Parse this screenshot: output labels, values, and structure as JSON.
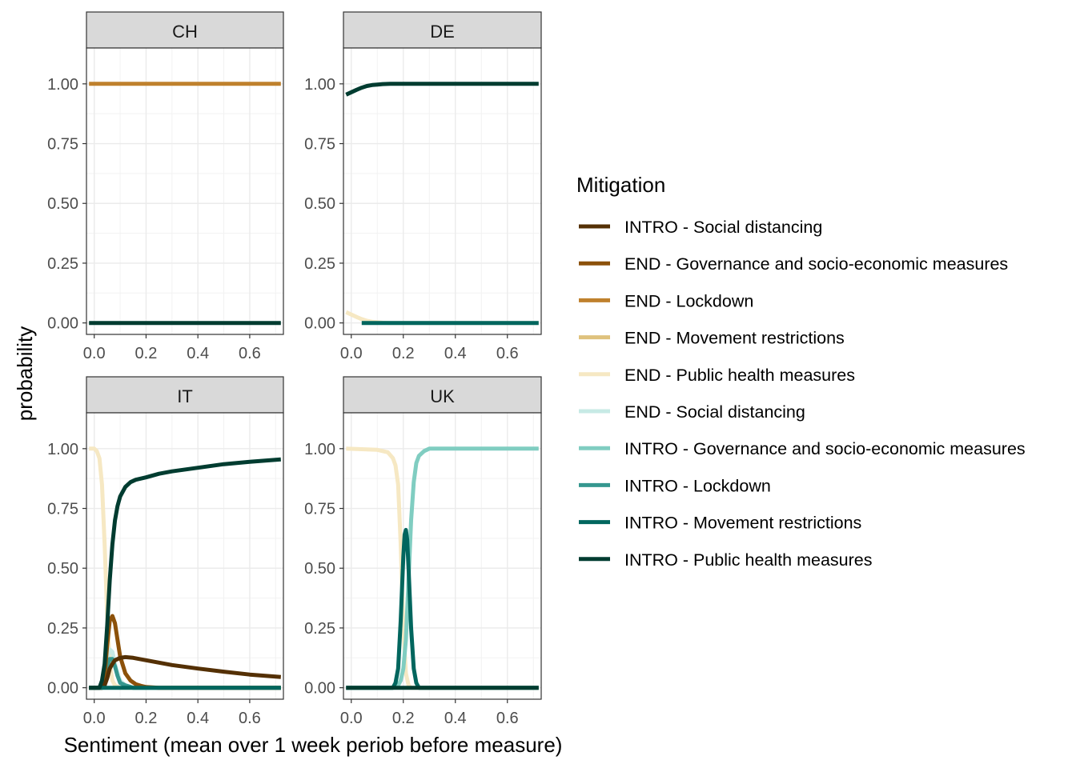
{
  "chart_data": {
    "type": "line",
    "layout": "facet 2x2",
    "xlabel": "Sentiment (mean over 1 week periob before measure)",
    "ylabel": "probability",
    "xlim": [
      -0.02,
      0.72
    ],
    "ylim": [
      -0.05,
      1.15
    ],
    "x_ticks": [
      0.0,
      0.2,
      0.4,
      0.6
    ],
    "x_tick_labels": [
      "0.0",
      "0.2",
      "0.4",
      "0.6"
    ],
    "y_ticks": [
      0,
      0.25,
      0.5,
      0.75,
      1.0
    ],
    "y_tick_labels": [
      "0.00",
      "0.25",
      "0.50",
      "0.75",
      "1.00"
    ],
    "grid": true,
    "legend": {
      "title": "Mitigation",
      "position": "right",
      "entries": [
        {
          "label": "INTRO - Social distancing",
          "color": "#543005"
        },
        {
          "label": "END - Governance and socio-economic measures",
          "color": "#8c510a"
        },
        {
          "label": "END - Lockdown",
          "color": "#bf812d"
        },
        {
          "label": "END - Movement restrictions",
          "color": "#dfc27d"
        },
        {
          "label": "END - Public health measures",
          "color": "#f6e8c3"
        },
        {
          "label": "END - Social distancing",
          "color": "#c7eae5"
        },
        {
          "label": "INTRO - Governance and socio-economic measures",
          "color": "#80cdc1"
        },
        {
          "label": "INTRO - Lockdown",
          "color": "#35978f"
        },
        {
          "label": "INTRO - Movement restrictions",
          "color": "#01665e"
        },
        {
          "label": "INTRO - Public health measures",
          "color": "#003c30"
        }
      ]
    },
    "panels": [
      {
        "title": "CH",
        "series": [
          {
            "name": "INTRO - Public health measures",
            "color": "#003c30",
            "x": [
              -0.02,
              0.72
            ],
            "y": [
              0.0,
              0.0
            ]
          },
          {
            "name": "END - Lockdown",
            "color": "#bf812d",
            "x": [
              -0.02,
              0.72
            ],
            "y": [
              1.0,
              1.0
            ]
          }
        ]
      },
      {
        "title": "DE",
        "series": [
          {
            "name": "END - Public health measures",
            "color": "#f6e8c3",
            "x": [
              -0.02,
              0.0,
              0.02,
              0.04,
              0.06,
              0.08,
              0.1,
              0.12,
              0.15,
              0.2,
              0.72
            ],
            "y": [
              0.045,
              0.035,
              0.025,
              0.016,
              0.009,
              0.005,
              0.003,
              0.001,
              0.0,
              0.0,
              0.0
            ]
          },
          {
            "name": "INTRO - Movement restrictions",
            "color": "#01665e",
            "x": [
              0.04,
              0.72
            ],
            "y": [
              0.0,
              0.0
            ]
          },
          {
            "name": "INTRO - Public health measures",
            "color": "#003c30",
            "x": [
              -0.02,
              0.0,
              0.02,
              0.04,
              0.06,
              0.08,
              0.1,
              0.12,
              0.15,
              0.2,
              0.72
            ],
            "y": [
              0.955,
              0.965,
              0.975,
              0.984,
              0.991,
              0.995,
              0.997,
              0.999,
              1.0,
              1.0,
              1.0
            ]
          }
        ]
      },
      {
        "title": "IT",
        "series": [
          {
            "name": "END - Public health measures",
            "color": "#f6e8c3",
            "x": [
              -0.02,
              0.0,
              0.01,
              0.02,
              0.03,
              0.04,
              0.05,
              0.06,
              0.07,
              0.08,
              0.1,
              0.12,
              0.72
            ],
            "y": [
              1.0,
              1.0,
              0.99,
              0.96,
              0.85,
              0.6,
              0.3,
              0.1,
              0.03,
              0.01,
              0.0,
              0.0,
              0.0
            ]
          },
          {
            "name": "END - Social distancing",
            "color": "#c7eae5",
            "x": [
              -0.02,
              0.02,
              0.03,
              0.04,
              0.05,
              0.06,
              0.07,
              0.08,
              0.09,
              0.1,
              0.12,
              0.15,
              0.72
            ],
            "y": [
              0.0,
              0.0,
              0.02,
              0.06,
              0.12,
              0.16,
              0.15,
              0.1,
              0.06,
              0.03,
              0.01,
              0.0,
              0.0
            ]
          },
          {
            "name": "INTRO - Lockdown",
            "color": "#35978f",
            "x": [
              -0.02,
              0.02,
              0.03,
              0.04,
              0.05,
              0.06,
              0.07,
              0.08,
              0.09,
              0.1,
              0.12,
              0.15,
              0.72
            ],
            "y": [
              0.0,
              0.0,
              0.02,
              0.05,
              0.09,
              0.12,
              0.12,
              0.09,
              0.05,
              0.02,
              0.01,
              0.0,
              0.0
            ]
          },
          {
            "name": "END - Governance and socio-economic measures",
            "color": "#8c510a",
            "x": [
              -0.02,
              0.03,
              0.04,
              0.05,
              0.06,
              0.07,
              0.08,
              0.09,
              0.1,
              0.12,
              0.14,
              0.16,
              0.18,
              0.2,
              0.25,
              0.72
            ],
            "y": [
              0.0,
              0.0,
              0.05,
              0.18,
              0.28,
              0.3,
              0.27,
              0.2,
              0.13,
              0.06,
              0.03,
              0.015,
              0.008,
              0.003,
              0.0,
              0.0
            ]
          },
          {
            "name": "INTRO - Social distancing",
            "color": "#543005",
            "x": [
              -0.02,
              0.03,
              0.04,
              0.05,
              0.06,
              0.07,
              0.08,
              0.1,
              0.12,
              0.15,
              0.2,
              0.3,
              0.4,
              0.5,
              0.6,
              0.72
            ],
            "y": [
              0.0,
              0.0,
              0.01,
              0.04,
              0.08,
              0.1,
              0.115,
              0.125,
              0.128,
              0.125,
              0.115,
              0.095,
              0.08,
              0.067,
              0.055,
              0.045
            ]
          },
          {
            "name": "INTRO - Movement restrictions",
            "color": "#01665e",
            "x": [
              -0.02,
              0.72
            ],
            "y": [
              0.0,
              0.0
            ]
          },
          {
            "name": "INTRO - Public health measures",
            "color": "#003c30",
            "x": [
              -0.02,
              0.02,
              0.03,
              0.04,
              0.05,
              0.06,
              0.07,
              0.08,
              0.09,
              0.1,
              0.12,
              0.14,
              0.16,
              0.18,
              0.2,
              0.25,
              0.3,
              0.4,
              0.5,
              0.6,
              0.72
            ],
            "y": [
              0.0,
              0.0,
              0.03,
              0.1,
              0.26,
              0.45,
              0.6,
              0.7,
              0.76,
              0.8,
              0.84,
              0.86,
              0.87,
              0.875,
              0.88,
              0.895,
              0.905,
              0.92,
              0.935,
              0.945,
              0.955
            ]
          }
        ]
      },
      {
        "title": "UK",
        "series": [
          {
            "name": "END - Public health measures",
            "color": "#f6e8c3",
            "x": [
              -0.02,
              0.1,
              0.14,
              0.16,
              0.17,
              0.18,
              0.19,
              0.2,
              0.21,
              0.22,
              0.23,
              0.25,
              0.72
            ],
            "y": [
              1.0,
              0.995,
              0.985,
              0.96,
              0.93,
              0.85,
              0.6,
              0.25,
              0.06,
              0.01,
              0.0,
              0.0,
              0.0
            ]
          },
          {
            "name": "INTRO - Governance and socio-economic measures",
            "color": "#80cdc1",
            "x": [
              -0.02,
              0.16,
              0.18,
              0.19,
              0.2,
              0.21,
              0.22,
              0.23,
              0.24,
              0.25,
              0.26,
              0.28,
              0.3,
              0.72
            ],
            "y": [
              0.0,
              0.0,
              0.01,
              0.03,
              0.08,
              0.2,
              0.45,
              0.7,
              0.86,
              0.94,
              0.97,
              0.99,
              1.0,
              1.0
            ]
          },
          {
            "name": "INTRO - Movement restrictions",
            "color": "#01665e",
            "x": [
              -0.02,
              0.16,
              0.17,
              0.18,
              0.19,
              0.2,
              0.205,
              0.21,
              0.215,
              0.22,
              0.23,
              0.24,
              0.25,
              0.26,
              0.72
            ],
            "y": [
              0.0,
              0.0,
              0.02,
              0.08,
              0.28,
              0.55,
              0.64,
              0.66,
              0.62,
              0.5,
              0.25,
              0.08,
              0.02,
              0.0,
              0.0
            ]
          },
          {
            "name": "INTRO - Public health measures",
            "color": "#003c30",
            "x": [
              -0.02,
              0.72
            ],
            "y": [
              0.0,
              0.0
            ]
          }
        ]
      }
    ]
  }
}
